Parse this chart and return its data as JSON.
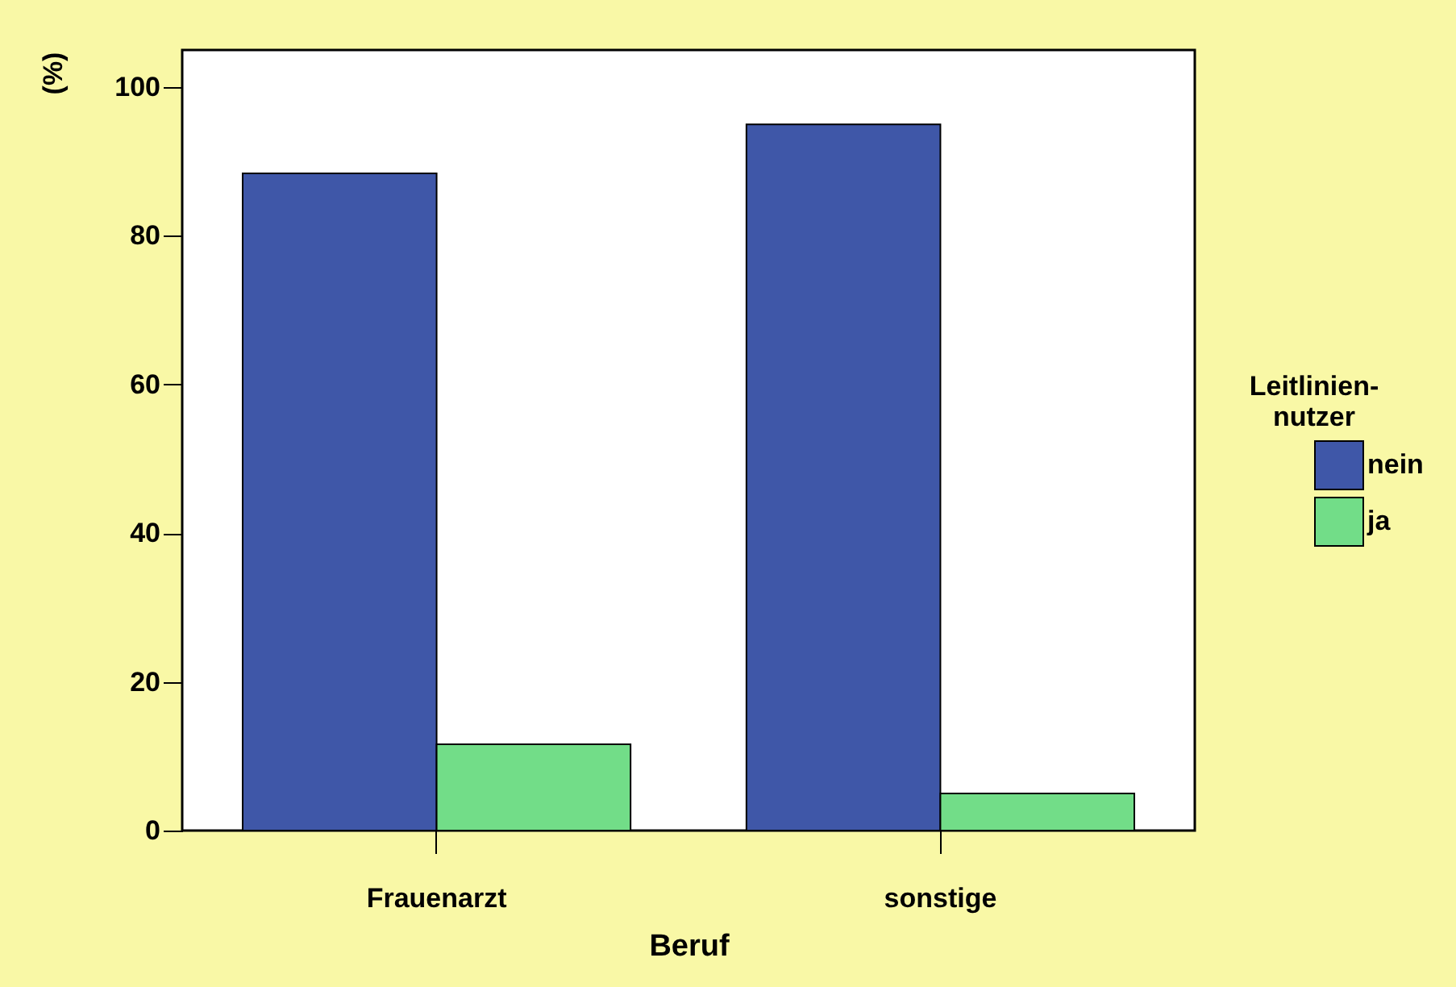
{
  "chart_data": {
    "type": "bar",
    "xlabel": "Beruf",
    "ylabel": "(%)",
    "legend_title": "Leitlinien-nutzer",
    "categories": [
      "Frauenarzt",
      "sonstige"
    ],
    "series": [
      {
        "name": "nein",
        "color": "#3f57a8",
        "values": [
          88.4,
          95.0
        ]
      },
      {
        "name": "ja",
        "color": "#72dd88",
        "values": [
          11.6,
          5.0
        ]
      }
    ],
    "ylim": [
      0,
      105
    ],
    "yticks": [
      0,
      20,
      40,
      60,
      80,
      100
    ],
    "grid": false,
    "legend": "right"
  }
}
